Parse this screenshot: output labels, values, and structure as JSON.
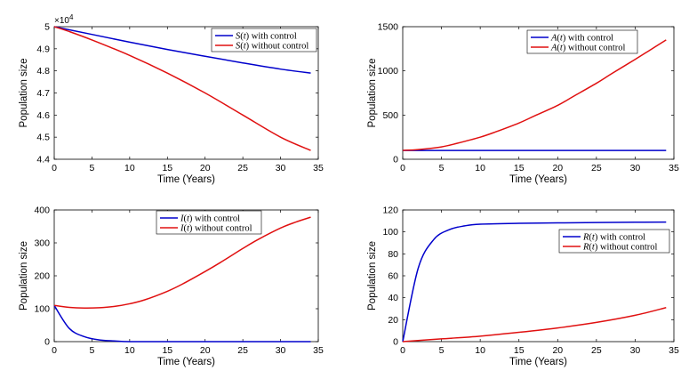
{
  "colors": {
    "with_control": "#0000CC",
    "without_control": "#E01010",
    "axis": "#000000"
  },
  "chart_data": [
    {
      "type": "line",
      "xlabel": "Time (Years)",
      "ylabel": "Population size",
      "xlim": [
        0,
        35
      ],
      "ylim": [
        4.4,
        5
      ],
      "xticks": [
        0,
        5,
        10,
        15,
        20,
        25,
        30,
        35
      ],
      "yticks": [
        4.4,
        4.5,
        4.6,
        4.7,
        4.8,
        4.9,
        5
      ],
      "ytick_labels": [
        "4.4",
        "4.5",
        "4.6",
        "4.7",
        "4.8",
        "4.9",
        "5"
      ],
      "exponent_label": "×10",
      "exponent_power": "4",
      "legend_position": "top-right",
      "series": [
        {
          "name": "S(t) with control",
          "legend_sym": "S",
          "legend_suffix": " with control",
          "color": "#0000CC",
          "x": [
            0,
            2,
            5,
            10,
            15,
            20,
            25,
            30,
            34
          ],
          "y": [
            5.0,
            4.986,
            4.965,
            4.93,
            4.897,
            4.866,
            4.836,
            4.808,
            4.79
          ]
        },
        {
          "name": "S(t) without control",
          "legend_sym": "S",
          "legend_suffix": " without control",
          "color": "#E01010",
          "x": [
            0,
            2,
            5,
            10,
            15,
            20,
            25,
            30,
            34
          ],
          "y": [
            5.0,
            4.978,
            4.94,
            4.87,
            4.79,
            4.7,
            4.6,
            4.5,
            4.44
          ]
        }
      ]
    },
    {
      "type": "line",
      "xlabel": "Time (Years)",
      "ylabel": "Population size",
      "xlim": [
        0,
        35
      ],
      "ylim": [
        0,
        1500
      ],
      "xticks": [
        0,
        5,
        10,
        15,
        20,
        25,
        30,
        35
      ],
      "yticks": [
        0,
        500,
        1000,
        1500
      ],
      "ytick_labels": [
        "0",
        "500",
        "1000",
        "1500"
      ],
      "legend_position": "top-right",
      "series": [
        {
          "name": "A(t) with control",
          "legend_sym": "A",
          "legend_suffix": " with control",
          "color": "#0000CC",
          "x": [
            0,
            2,
            5,
            10,
            15,
            20,
            25,
            30,
            34
          ],
          "y": [
            100,
            100,
            100,
            100,
            100,
            100,
            100,
            100,
            100
          ]
        },
        {
          "name": "A(t) without control",
          "legend_sym": "A",
          "legend_suffix": " without control",
          "color": "#E01010",
          "x": [
            0,
            2,
            5,
            7,
            10,
            12,
            15,
            17,
            20,
            22,
            25,
            27,
            30,
            32,
            34
          ],
          "y": [
            100,
            110,
            140,
            180,
            250,
            310,
            410,
            490,
            610,
            710,
            860,
            970,
            1130,
            1240,
            1350
          ]
        }
      ]
    },
    {
      "type": "line",
      "xlabel": "Time (Years)",
      "ylabel": "Population size",
      "xlim": [
        0,
        35
      ],
      "ylim": [
        0,
        400
      ],
      "xticks": [
        0,
        5,
        10,
        15,
        20,
        25,
        30,
        35
      ],
      "yticks": [
        0,
        100,
        200,
        300,
        400
      ],
      "ytick_labels": [
        "0",
        "100",
        "200",
        "300",
        "400"
      ],
      "legend_position": "top-right",
      "series": [
        {
          "name": "I(t) with control",
          "legend_sym": "I",
          "legend_suffix": " with control",
          "color": "#0000CC",
          "x": [
            0,
            2,
            4,
            6,
            8,
            10,
            15,
            20,
            25,
            30,
            34
          ],
          "y": [
            110,
            40,
            15,
            5,
            2,
            0,
            0,
            0,
            0,
            0,
            0
          ]
        },
        {
          "name": "I(t) without control",
          "legend_sym": "I",
          "legend_suffix": " without control",
          "color": "#E01010",
          "x": [
            0,
            2,
            4,
            6,
            8,
            10,
            12,
            15,
            17,
            20,
            22,
            25,
            27,
            30,
            32,
            34
          ],
          "y": [
            110,
            104,
            102,
            103,
            107,
            115,
            127,
            153,
            175,
            213,
            240,
            283,
            310,
            345,
            363,
            378
          ]
        }
      ]
    },
    {
      "type": "line",
      "xlabel": "Time (Years)",
      "ylabel": "Population size",
      "xlim": [
        0,
        35
      ],
      "ylim": [
        0,
        120
      ],
      "xticks": [
        0,
        5,
        10,
        15,
        20,
        25,
        30,
        35
      ],
      "yticks": [
        0,
        20,
        40,
        60,
        80,
        100,
        120
      ],
      "ytick_labels": [
        "0",
        "20",
        "40",
        "60",
        "80",
        "100",
        "120"
      ],
      "legend_position": "middle-right",
      "series": [
        {
          "name": "R(t) with control",
          "legend_sym": "R",
          "legend_suffix": " with control",
          "color": "#0000CC",
          "x": [
            0,
            2,
            4,
            6,
            8,
            10,
            15,
            20,
            25,
            30,
            34
          ],
          "y": [
            0,
            67,
            93,
            102,
            105.5,
            107,
            107.8,
            108.2,
            108.5,
            108.8,
            109
          ]
        },
        {
          "name": "R(t) without control",
          "legend_sym": "R",
          "legend_suffix": " without control",
          "color": "#E01010",
          "x": [
            0,
            5,
            10,
            15,
            20,
            25,
            30,
            34
          ],
          "y": [
            0,
            2.5,
            5,
            8.5,
            12.5,
            17.5,
            24,
            31
          ]
        }
      ]
    }
  ]
}
